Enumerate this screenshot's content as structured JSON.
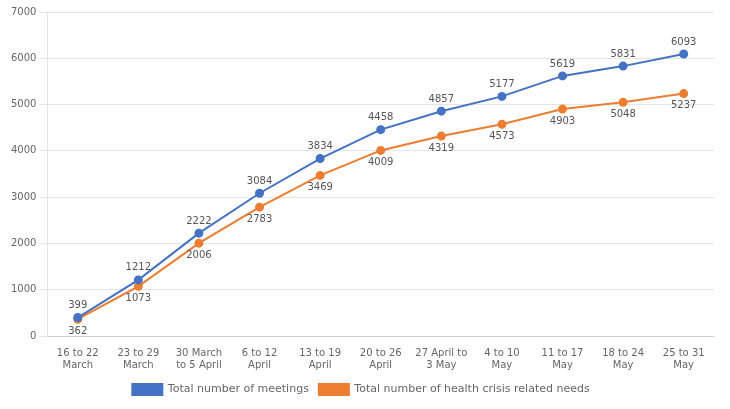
{
  "chart_data": {
    "type": "line",
    "categories": [
      "16 to 22\nMarch",
      "23 to 29\nMarch",
      "30 March\nto 5 April",
      "6 to 12\nApril",
      "13 to 19\nApril",
      "20 to 26\nApril",
      "27 April to\n3 May",
      "4 to 10\nMay",
      "11 to 17\nMay",
      "18 to 24\nMay",
      "25 to 31\nMay"
    ],
    "series": [
      {
        "name": "Total number of meetings",
        "color": "#4472C4",
        "marker": "circle",
        "values": [
          399,
          1212,
          2222,
          3084,
          3834,
          4458,
          4857,
          5177,
          5619,
          5831,
          6093
        ]
      },
      {
        "name": "Total number of health crisis related needs",
        "color": "#ED7D31",
        "marker": "circle",
        "values": [
          362,
          1073,
          2006,
          2783,
          3469,
          4009,
          4319,
          4573,
          4903,
          5048,
          5237
        ]
      }
    ],
    "ylim": [
      0,
      7000
    ],
    "yticks": [
      0,
      1000,
      2000,
      3000,
      4000,
      5000,
      6000,
      7000
    ],
    "grid": true,
    "legend": "bottom",
    "data_labels": true
  }
}
